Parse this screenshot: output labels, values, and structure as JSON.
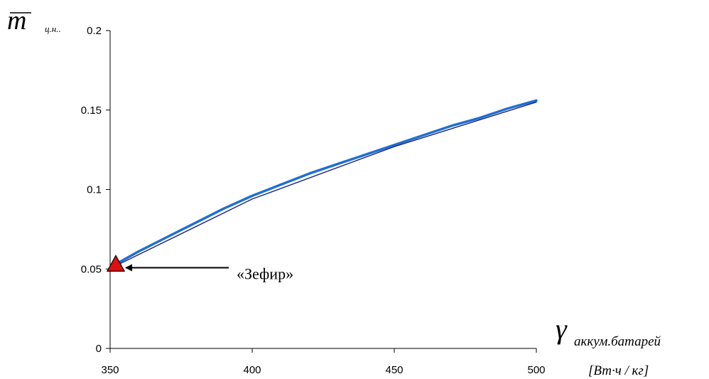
{
  "chart_data": {
    "type": "line",
    "title": "",
    "ylabel": {
      "symbol": "m",
      "subscript": "ц.н.."
    },
    "xlabel": {
      "symbol": "γ",
      "subscript": "аккум.батарей",
      "unit": "[Вт·ч / кг]"
    },
    "xlim": [
      350,
      500
    ],
    "ylim": [
      0,
      0.2
    ],
    "x_ticks": [
      "350",
      "400",
      "450",
      "500"
    ],
    "y_ticks": [
      "0",
      "0.05",
      "0.1",
      "0.15",
      "0.2"
    ],
    "grid": false,
    "legend": "none",
    "series": [
      {
        "color": "#1f6fd0",
        "x": [
          352,
          360,
          370,
          380,
          390,
          400,
          410,
          420,
          430,
          440,
          450,
          460,
          470,
          480,
          490,
          500
        ],
        "y": [
          0.053,
          0.061,
          0.07,
          0.079,
          0.088,
          0.096,
          0.103,
          0.11,
          0.116,
          0.122,
          0.128,
          0.134,
          0.14,
          0.145,
          0.151,
          0.156
        ]
      },
      {
        "color": "#1a237e",
        "x": [
          352,
          400,
          450,
          500
        ],
        "y": [
          0.052,
          0.094,
          0.127,
          0.155
        ]
      }
    ],
    "annotations": [
      {
        "text": "«Зефир»",
        "marker": "triangle",
        "marker_color": "#e01010",
        "x": 352,
        "y": 0.053
      }
    ]
  }
}
